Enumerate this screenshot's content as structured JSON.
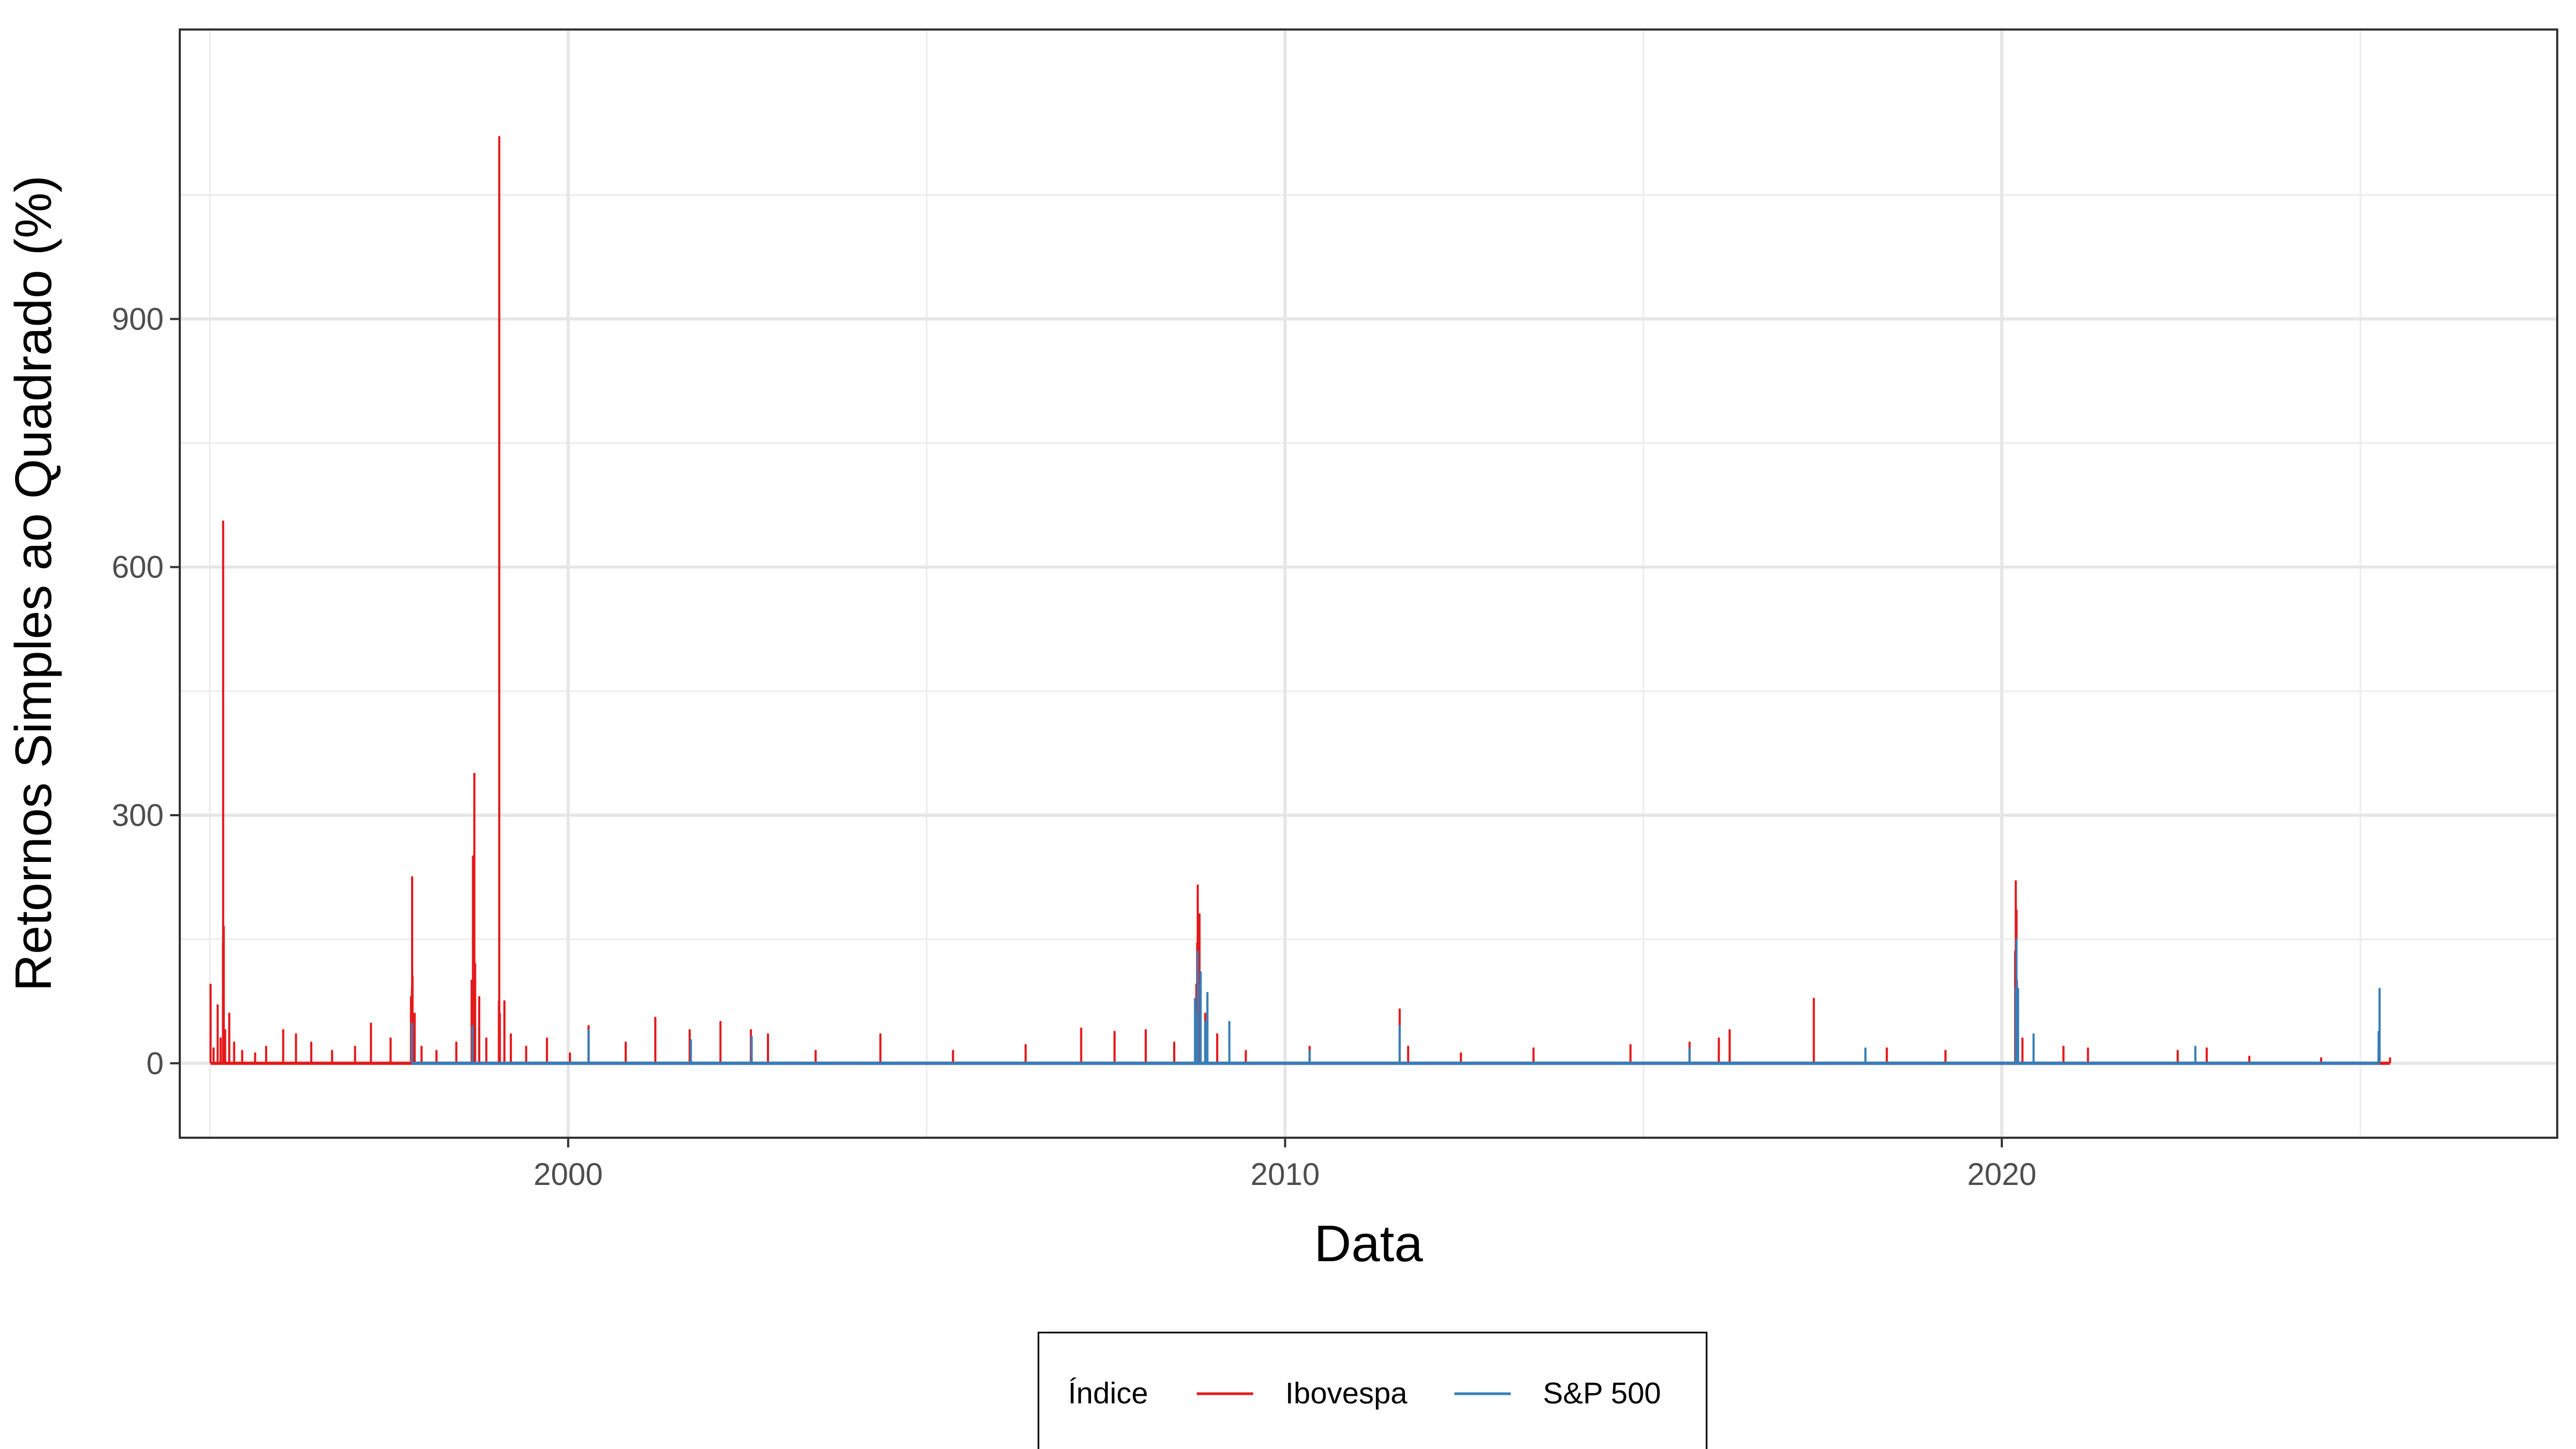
{
  "chart_data": {
    "type": "line",
    "title": "",
    "xlabel": "Data",
    "ylabel": "Retornos Simples ao Quadrado (%)",
    "x_range": [
      "1994-08-01",
      "2027-10-01"
    ],
    "ylim": [
      -90,
      1250
    ],
    "x_ticks": [
      {
        "value": "2000-01-01",
        "label": "2000"
      },
      {
        "value": "2010-01-01",
        "label": "2010"
      },
      {
        "value": "2020-01-01",
        "label": "2020"
      }
    ],
    "y_ticks": [
      {
        "value": 0,
        "label": "0"
      },
      {
        "value": 300,
        "label": "300"
      },
      {
        "value": 600,
        "label": "600"
      },
      {
        "value": 900,
        "label": "900"
      }
    ],
    "grid": true,
    "legend": {
      "title": "Índice",
      "position": "bottom",
      "entries": [
        "Ibovespa",
        "S&P 500"
      ]
    },
    "series": [
      {
        "name": "Ibovespa",
        "color": "#e41a1c",
        "points": [
          [
            "1995-01-05",
            95
          ],
          [
            "1995-01-20",
            18
          ],
          [
            "1995-02-10",
            70
          ],
          [
            "1995-02-25",
            30
          ],
          [
            "1995-03-09",
            145
          ],
          [
            "1995-03-10",
            655
          ],
          [
            "1995-03-13",
            165
          ],
          [
            "1995-03-20",
            40
          ],
          [
            "1995-04-10",
            60
          ],
          [
            "1995-05-05",
            25
          ],
          [
            "1995-06-15",
            15
          ],
          [
            "1995-08-20",
            12
          ],
          [
            "1995-10-15",
            20
          ],
          [
            "1996-01-10",
            40
          ],
          [
            "1996-03-15",
            35
          ],
          [
            "1996-06-01",
            25
          ],
          [
            "1996-09-15",
            15
          ],
          [
            "1997-01-10",
            20
          ],
          [
            "1997-04-01",
            48
          ],
          [
            "1997-07-10",
            30
          ],
          [
            "1997-10-22",
            80
          ],
          [
            "1997-10-27",
            90
          ],
          [
            "1997-10-28",
            225
          ],
          [
            "1997-10-30",
            105
          ],
          [
            "1997-11-10",
            60
          ],
          [
            "1997-12-15",
            20
          ],
          [
            "1998-03-01",
            15
          ],
          [
            "1998-06-10",
            25
          ],
          [
            "1998-08-27",
            100
          ],
          [
            "1998-09-03",
            250
          ],
          [
            "1998-09-10",
            350
          ],
          [
            "1998-09-14",
            120
          ],
          [
            "1998-10-05",
            80
          ],
          [
            "1998-11-10",
            30
          ],
          [
            "1999-01-13",
            75
          ],
          [
            "1999-01-15",
            1120
          ],
          [
            "1999-01-18",
            60
          ],
          [
            "1999-02-10",
            75
          ],
          [
            "1999-03-15",
            35
          ],
          [
            "1999-06-01",
            20
          ],
          [
            "1999-09-15",
            30
          ],
          [
            "2000-01-10",
            12
          ],
          [
            "2000-04-14",
            45
          ],
          [
            "2000-10-20",
            25
          ],
          [
            "2001-03-20",
            55
          ],
          [
            "2001-09-11",
            40
          ],
          [
            "2002-02-15",
            50
          ],
          [
            "2002-07-20",
            40
          ],
          [
            "2002-10-15",
            35
          ],
          [
            "2003-06-15",
            15
          ],
          [
            "2004-05-10",
            35
          ],
          [
            "2005-05-15",
            15
          ],
          [
            "2006-05-20",
            22
          ],
          [
            "2007-02-27",
            42
          ],
          [
            "2007-08-16",
            38
          ],
          [
            "2008-01-22",
            40
          ],
          [
            "2008-06-15",
            25
          ],
          [
            "2008-10-06",
            95
          ],
          [
            "2008-10-10",
            145
          ],
          [
            "2008-10-13",
            215
          ],
          [
            "2008-10-22",
            180
          ],
          [
            "2008-10-27",
            100
          ],
          [
            "2008-11-20",
            60
          ],
          [
            "2009-01-20",
            35
          ],
          [
            "2009-06-15",
            15
          ],
          [
            "2010-05-06",
            20
          ],
          [
            "2011-08-08",
            65
          ],
          [
            "2011-09-20",
            20
          ],
          [
            "2012-06-15",
            12
          ],
          [
            "2013-06-20",
            18
          ],
          [
            "2014-10-27",
            22
          ],
          [
            "2015-08-24",
            25
          ],
          [
            "2016-01-20",
            30
          ],
          [
            "2016-03-15",
            40
          ],
          [
            "2017-05-18",
            78
          ],
          [
            "2018-05-25",
            18
          ],
          [
            "2019-03-20",
            15
          ],
          [
            "2020-03-09",
            135
          ],
          [
            "2020-03-12",
            220
          ],
          [
            "2020-03-16",
            185
          ],
          [
            "2020-03-18",
            100
          ],
          [
            "2020-03-23",
            60
          ],
          [
            "2020-04-15",
            30
          ],
          [
            "2020-11-10",
            20
          ],
          [
            "2021-03-15",
            18
          ],
          [
            "2022-06-15",
            15
          ],
          [
            "2022-11-10",
            18
          ],
          [
            "2023-06-15",
            8
          ],
          [
            "2024-06-15",
            6
          ],
          [
            "2025-04-04",
            12
          ],
          [
            "2025-06-01",
            6
          ]
        ]
      },
      {
        "name": "S&P 500",
        "color": "#377eb8",
        "points": [
          [
            "1997-10-27",
            48
          ],
          [
            "1998-08-31",
            45
          ],
          [
            "2000-04-14",
            40
          ],
          [
            "2001-09-17",
            28
          ],
          [
            "2002-07-24",
            32
          ],
          [
            "2008-09-29",
            78
          ],
          [
            "2008-10-09",
            60
          ],
          [
            "2008-10-13",
            135
          ],
          [
            "2008-10-15",
            95
          ],
          [
            "2008-10-28",
            110
          ],
          [
            "2008-11-20",
            50
          ],
          [
            "2008-12-01",
            85
          ],
          [
            "2009-03-23",
            50
          ],
          [
            "2010-05-06",
            15
          ],
          [
            "2011-08-08",
            45
          ],
          [
            "2015-08-24",
            18
          ],
          [
            "2018-02-05",
            18
          ],
          [
            "2020-03-12",
            90
          ],
          [
            "2020-03-13",
            90
          ],
          [
            "2020-03-16",
            150
          ],
          [
            "2020-03-24",
            90
          ],
          [
            "2020-06-11",
            35
          ],
          [
            "2022-09-13",
            20
          ],
          [
            "2025-04-04",
            38
          ],
          [
            "2025-04-09",
            90
          ]
        ]
      }
    ]
  }
}
